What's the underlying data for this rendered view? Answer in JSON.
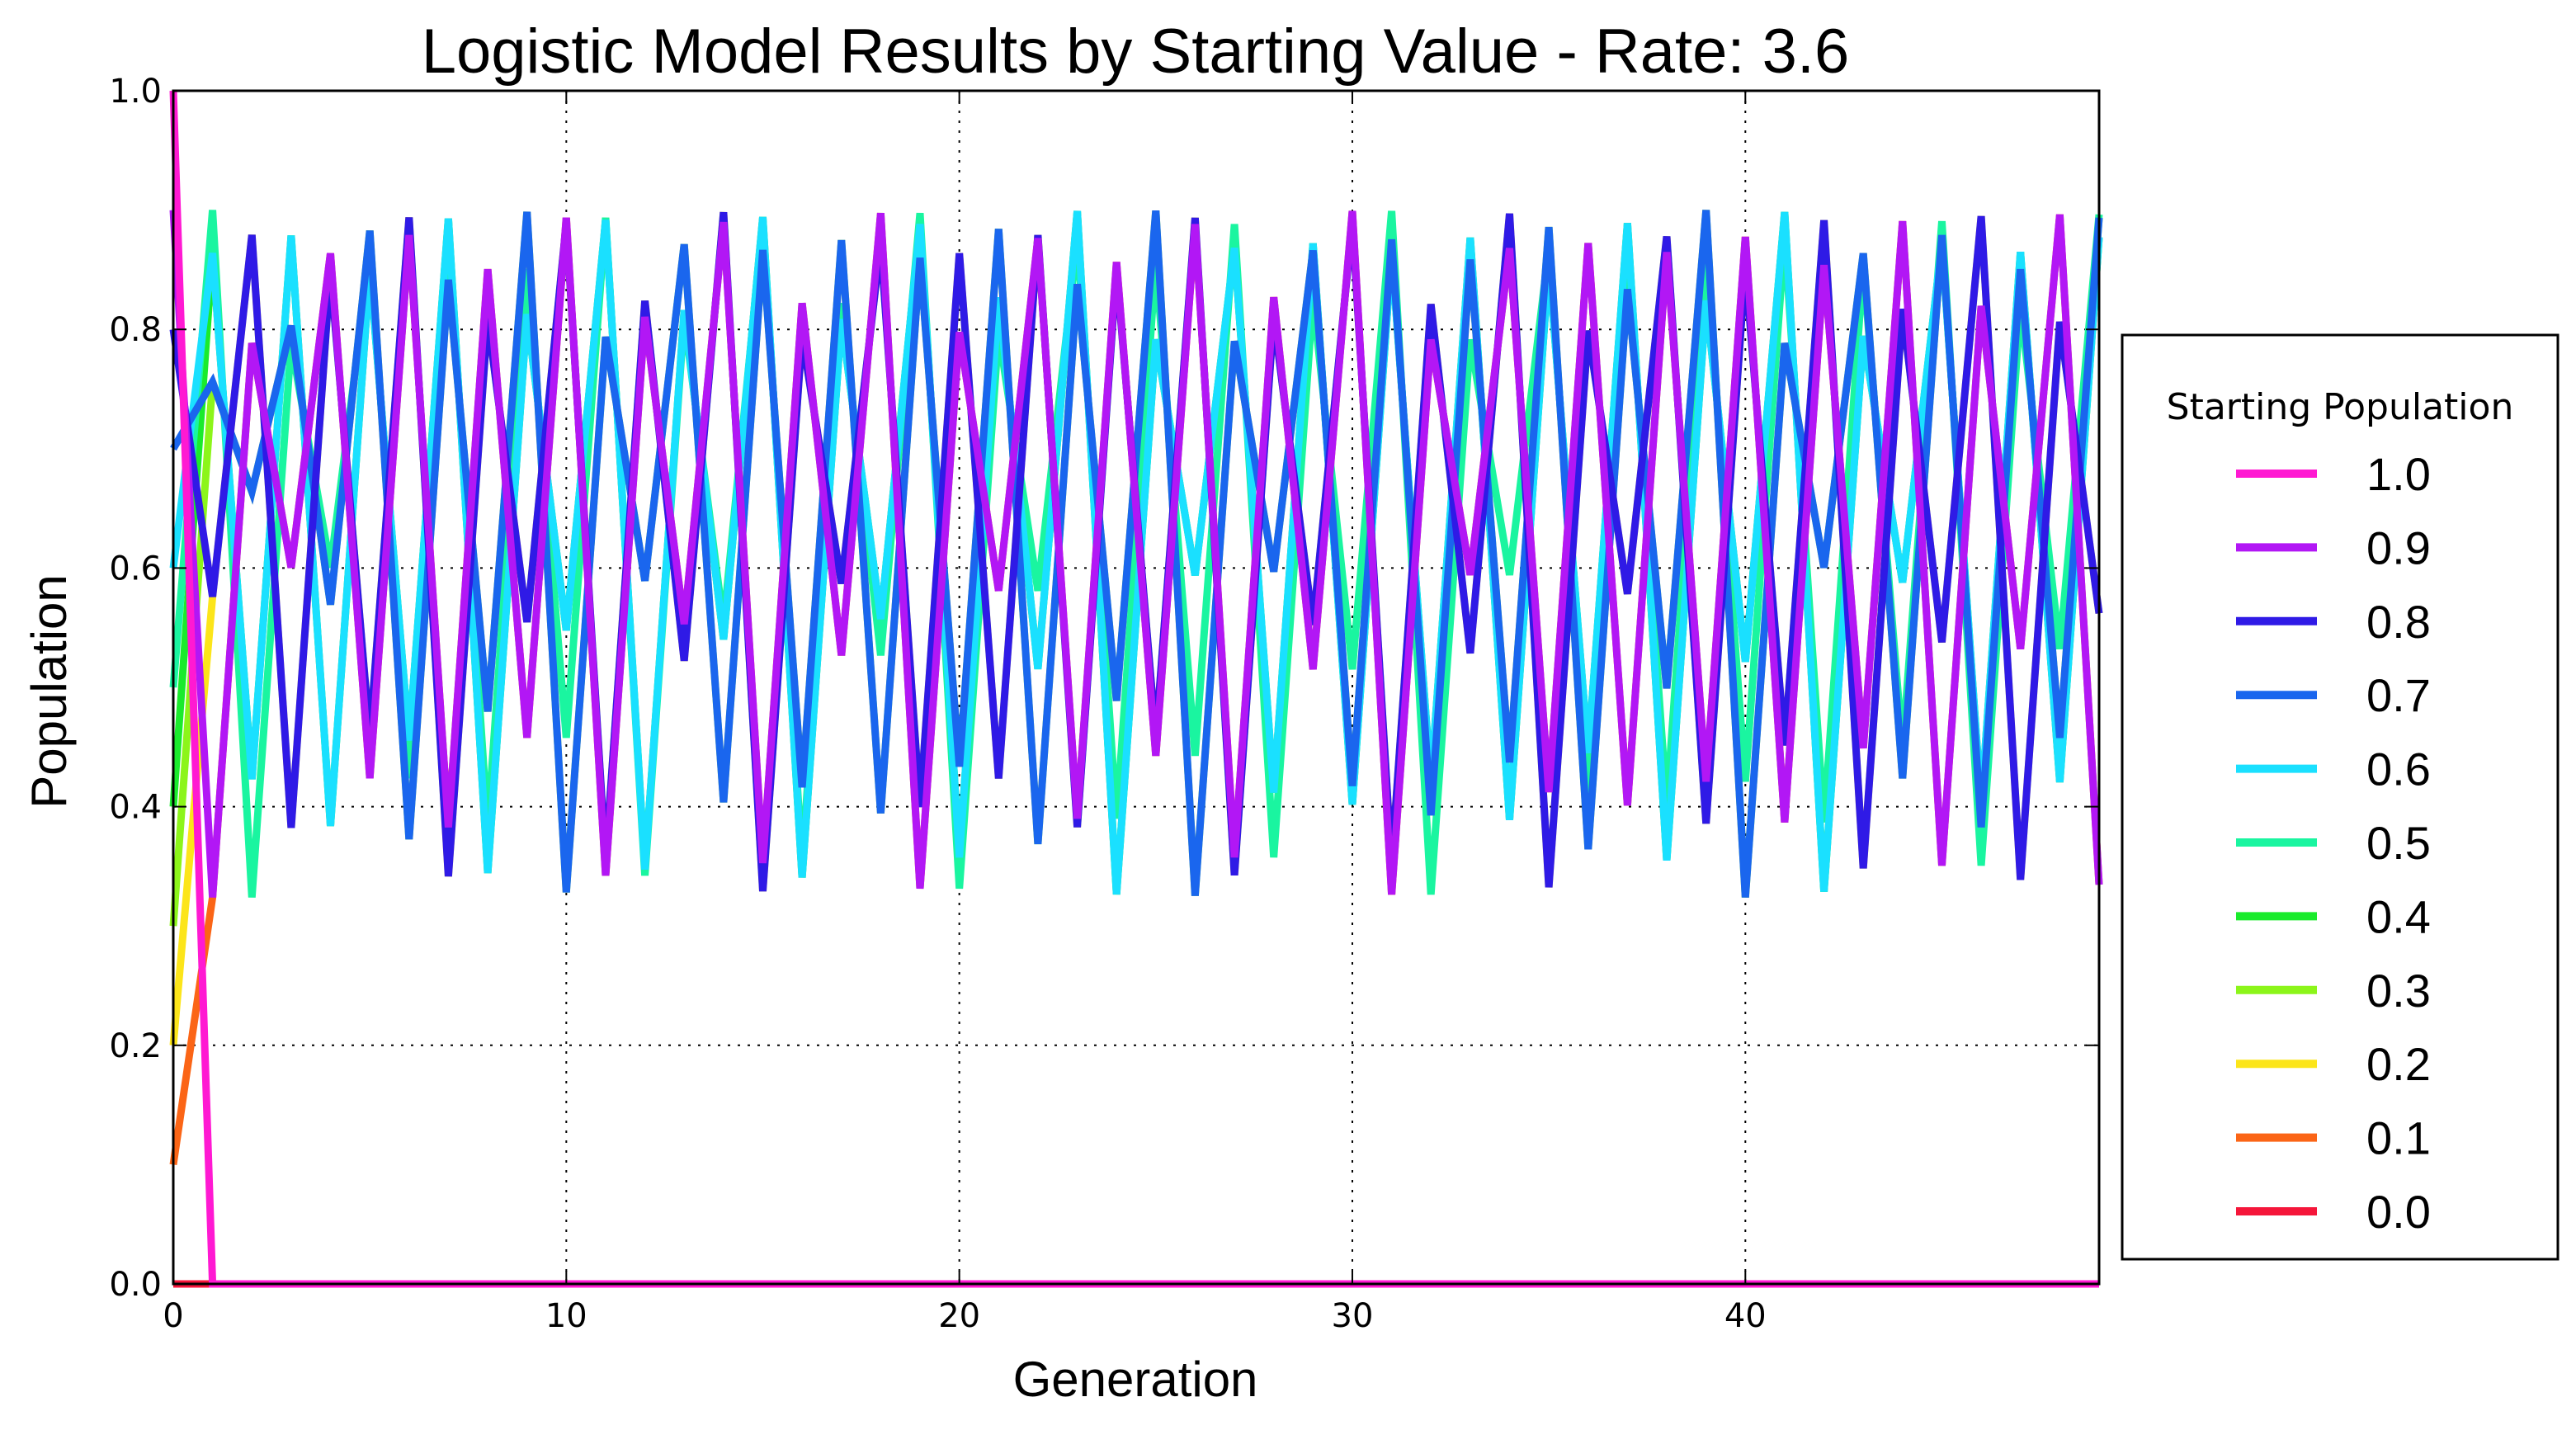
{
  "chart_data": {
    "type": "line",
    "title": "Logistic Model Results by Starting Value - Rate: 3.6",
    "xlabel": "Generation",
    "ylabel": "Population",
    "rate": 3.6,
    "generations": 50,
    "xlim": [
      0,
      49
    ],
    "ylim": [
      0.0,
      1.0
    ],
    "xticks": [
      0,
      10,
      20,
      30,
      40
    ],
    "xtick_labels": [
      "0",
      "10",
      "20",
      "30",
      "40"
    ],
    "yticks": [
      0.0,
      0.2,
      0.4,
      0.6,
      0.8,
      1.0
    ],
    "ytick_labels": [
      "0.0",
      "0.2",
      "0.4",
      "0.6",
      "0.8",
      "1.0"
    ],
    "grid": true,
    "legend": {
      "title": "Starting Population",
      "placement": "right, outside plot"
    },
    "series": [
      {
        "name": "1.0",
        "start": 1.0,
        "color": "#ff19d2"
      },
      {
        "name": "0.9",
        "start": 0.9,
        "color": "#b217f5"
      },
      {
        "name": "0.8",
        "start": 0.8,
        "color": "#2f1ae6"
      },
      {
        "name": "0.7",
        "start": 0.7,
        "color": "#1a66ee"
      },
      {
        "name": "0.6",
        "start": 0.6,
        "color": "#1ae0ff"
      },
      {
        "name": "0.5",
        "start": 0.5,
        "color": "#1af5a0"
      },
      {
        "name": "0.4",
        "start": 0.4,
        "color": "#1aeb2c"
      },
      {
        "name": "0.3",
        "start": 0.3,
        "color": "#8cf51a"
      },
      {
        "name": "0.2",
        "start": 0.2,
        "color": "#fce51a"
      },
      {
        "name": "0.1",
        "start": 0.1,
        "color": "#fb6516"
      },
      {
        "name": "0.0",
        "start": 0.0,
        "color": "#f5163a"
      }
    ]
  }
}
